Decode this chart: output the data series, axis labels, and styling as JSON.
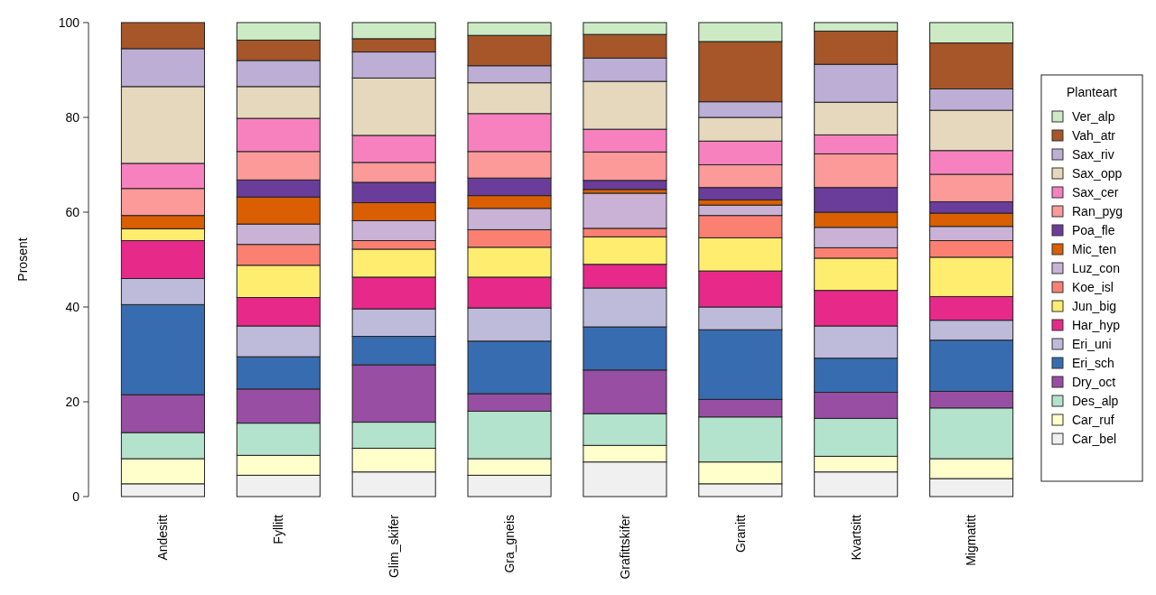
{
  "chart_data": {
    "type": "bar",
    "stacked": true,
    "ylabel": "Prosent",
    "legend_title": "Planteart",
    "legend": "right",
    "categories": [
      "Andesitt",
      "Fyllitt",
      "Glim_skifer",
      "Gra_gneis",
      "Grafittskifer",
      "Granitt",
      "Kvartsitt",
      "Migmatitt"
    ],
    "ylim": [
      0,
      100
    ],
    "yticks": [
      0,
      20,
      40,
      60,
      80,
      100
    ],
    "series": [
      {
        "name": "Car_bel",
        "color": "#f0f0f0",
        "values": [
          2.7,
          4.5,
          5.2,
          4.5,
          7.3,
          2.7,
          5.2,
          3.8
        ]
      },
      {
        "name": "Car_ruf",
        "color": "#ffffcc",
        "values": [
          5.3,
          4.2,
          5,
          3.5,
          3.5,
          4.6,
          3.3,
          4.2
        ]
      },
      {
        "name": "Des_alp",
        "color": "#b3e2cd",
        "values": [
          5.5,
          6.8,
          5.5,
          10,
          6.7,
          9.5,
          8,
          10.7
        ]
      },
      {
        "name": "Dry_oct",
        "color": "#984ea3",
        "values": [
          8,
          7.2,
          12.1,
          3.7,
          9.2,
          3.7,
          5.5,
          3.5
        ]
      },
      {
        "name": "Eri_sch",
        "color": "#386cb0",
        "values": [
          19,
          6.8,
          6,
          11.1,
          9.1,
          14.7,
          7.2,
          10.8
        ]
      },
      {
        "name": "Eri_uni",
        "color": "#bebada",
        "values": [
          5.5,
          6.5,
          5.8,
          7,
          8.2,
          4.8,
          6.8,
          4.2
        ]
      },
      {
        "name": "Har_hyp",
        "color": "#e7298a",
        "values": [
          8,
          6,
          6.7,
          6.5,
          5,
          7.6,
          7.5,
          5
        ]
      },
      {
        "name": "Jun_big",
        "color": "#ffed6f",
        "values": [
          2.5,
          6.8,
          5.9,
          6.3,
          5.8,
          7,
          6.8,
          8.3
        ]
      },
      {
        "name": "Koe_isl",
        "color": "#fb8072",
        "values": [
          0,
          4.4,
          1.8,
          3.7,
          1.8,
          4.7,
          2.2,
          3.5
        ]
      },
      {
        "name": "Luz_con",
        "color": "#cab2d6",
        "values": [
          0,
          4.3,
          4.2,
          4.5,
          7.4,
          2.2,
          4.3,
          3
        ]
      },
      {
        "name": "Mic_ten",
        "color": "#d95f02",
        "values": [
          2.8,
          5.7,
          3.8,
          2.7,
          0.8,
          1.1,
          3.2,
          2.8
        ]
      },
      {
        "name": "Poa_fle",
        "color": "#6a3d9a",
        "values": [
          0,
          3.6,
          4.3,
          3.7,
          1.9,
          2.6,
          5.2,
          2.4
        ]
      },
      {
        "name": "Ran_pyg",
        "color": "#fb9a99",
        "values": [
          5.7,
          6,
          4.2,
          5.6,
          6,
          4.8,
          7.1,
          5.8
        ]
      },
      {
        "name": "Sax_cer",
        "color": "#f781bf",
        "values": [
          5.3,
          7,
          5.7,
          8,
          4.8,
          5,
          4,
          5
        ]
      },
      {
        "name": "Sax_opp",
        "color": "#e5d8bd",
        "values": [
          16.2,
          6.7,
          12.1,
          6.5,
          10.1,
          5,
          6.9,
          8.5
        ]
      },
      {
        "name": "Sax_riv",
        "color": "#bcaed4",
        "values": [
          8,
          5.5,
          5.5,
          3.6,
          4.9,
          3.3,
          8,
          4.5
        ]
      },
      {
        "name": "Vah_atr",
        "color": "#a65628",
        "values": [
          5.5,
          4.3,
          2.8,
          6.4,
          5,
          12.7,
          7,
          9.7
        ]
      },
      {
        "name": "Ver_alp",
        "color": "#ccebc5",
        "values": [
          0,
          3.7,
          3.4,
          2.7,
          2.5,
          4,
          1.8,
          4.3
        ]
      }
    ]
  }
}
